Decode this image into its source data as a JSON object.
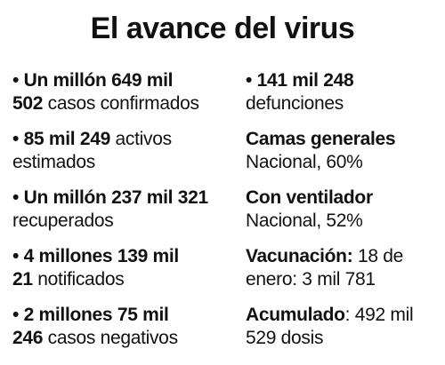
{
  "title": "El avance del virus",
  "left_items": [
    {
      "line1_bold": "• Un millón 649 mil",
      "line1_normal": "",
      "line2_bold": "502",
      "line2_normal": " casos confirmados"
    },
    {
      "line1_bold": "• 85 mil 249",
      "line1_normal": " activos",
      "line2_bold": "",
      "line2_normal": "estimados"
    },
    {
      "line1_bold": "• Un millón 237 mil 321",
      "line1_normal": "",
      "line2_bold": "",
      "line2_normal": "recuperados"
    },
    {
      "line1_bold": "• 4 millones 139 mil",
      "line1_normal": "",
      "line2_bold": "21",
      "line2_normal": " notificados"
    },
    {
      "line1_bold": "• 2 millones 75 mil",
      "line1_normal": "",
      "line2_bold": "246",
      "line2_normal": " casos negativos"
    }
  ],
  "right_items": [
    {
      "line1_bold": "• 141 mil 248",
      "line1_normal": "",
      "line2_bold": "",
      "line2_normal": "defunciones"
    },
    {
      "line1_bold": "Camas generales",
      "line1_normal": "",
      "line2_bold": "",
      "line2_normal": "Nacional, 60%"
    },
    {
      "line1_bold": "Con ventilador",
      "line1_normal": "",
      "line2_bold": "",
      "line2_normal": "Nacional, 52%"
    },
    {
      "line1_bold": "Vacunación:",
      "line1_normal": " 18 de",
      "line2_bold": "",
      "line2_normal": "enero: 3 mil 781"
    },
    {
      "line1_bold": "Acumulado",
      "line1_normal": ": 492 mil",
      "line2_bold": "",
      "line2_normal": "529 dosis"
    }
  ]
}
